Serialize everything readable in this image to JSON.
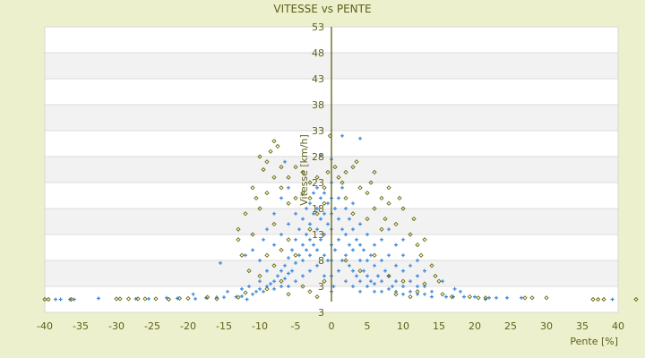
{
  "chart_data": {
    "type": "scatter",
    "title": "VITESSE vs PENTE",
    "xlabel": "Pente [%]",
    "ylabel": "Vitesse [km/h]",
    "xlim": [
      -40,
      40
    ],
    "ylim": [
      -2,
      53
    ],
    "x_ticks": [
      "-40",
      "-35",
      "-30",
      "-25",
      "-20",
      "-15",
      "-10",
      "-5",
      "0",
      "5",
      "10",
      "15",
      "20",
      "25",
      "30",
      "35",
      "40"
    ],
    "y_ticks": [
      "53",
      "48",
      "43",
      "38",
      "33",
      "28",
      "23",
      "18",
      "13",
      "8",
      "3",
      "3"
    ],
    "grid": true,
    "legend": "none",
    "colors": {
      "background": "#ecf0cc",
      "text": "#5f5f1a",
      "band": "#f2f2f2",
      "axis": "#5f5f10"
    },
    "series": [
      {
        "color": "#3a87d8",
        "marker": "plus",
        "points": [
          [
            -38.5,
            0.5
          ],
          [
            -37.8,
            0.5
          ],
          [
            -36.5,
            0.5
          ],
          [
            -35.9,
            0.5
          ],
          [
            -32.5,
            0.7
          ],
          [
            -27.3,
            0.6
          ],
          [
            -25.5,
            0.6
          ],
          [
            -23,
            0.8
          ],
          [
            -21.5,
            0.7
          ],
          [
            -19.3,
            1.5
          ],
          [
            -19,
            0.6
          ],
          [
            -17.5,
            0.8
          ],
          [
            -16,
            0.9
          ],
          [
            -15,
            0.9
          ],
          [
            -14.5,
            2
          ],
          [
            -13.3,
            1
          ],
          [
            -12.5,
            1.1
          ],
          [
            -11.8,
            0.5
          ],
          [
            -15.5,
            7.5
          ],
          [
            16,
            1
          ],
          [
            17,
            1
          ],
          [
            18,
            2
          ],
          [
            18.5,
            1
          ],
          [
            20,
            1
          ],
          [
            21.5,
            0.5
          ],
          [
            22,
            0.8
          ],
          [
            23,
            0.8
          ],
          [
            24.5,
            0.8
          ],
          [
            26.5,
            0.8
          ],
          [
            39.2,
            0.5
          ],
          [
            15.5,
            4
          ],
          [
            17.2,
            2.5
          ],
          [
            -11,
            1.5
          ],
          [
            -10.5,
            2
          ],
          [
            -10,
            2.5
          ],
          [
            -9.5,
            2
          ],
          [
            -9,
            3
          ],
          [
            -8.5,
            3.5
          ],
          [
            -8,
            2.5
          ],
          [
            -8,
            4
          ],
          [
            -7.5,
            5
          ],
          [
            -7,
            3
          ],
          [
            -7,
            6
          ],
          [
            -6.5,
            4.5
          ],
          [
            -6.5,
            7
          ],
          [
            -6,
            3
          ],
          [
            -6,
            5.5
          ],
          [
            -6,
            8.5
          ],
          [
            -5.5,
            6
          ],
          [
            -5.5,
            10
          ],
          [
            -5,
            4
          ],
          [
            -5,
            7.5
          ],
          [
            -5,
            12
          ],
          [
            -4.5,
            9
          ],
          [
            -4.5,
            14
          ],
          [
            -4,
            5
          ],
          [
            -4,
            8
          ],
          [
            -4,
            11
          ],
          [
            -4,
            16
          ],
          [
            -3.5,
            10
          ],
          [
            -3.5,
            13
          ],
          [
            -3.5,
            18
          ],
          [
            -3,
            6
          ],
          [
            -3,
            9
          ],
          [
            -3,
            12
          ],
          [
            -3,
            15
          ],
          [
            -3,
            19
          ],
          [
            -2.5,
            11
          ],
          [
            -2.5,
            17
          ],
          [
            -2.5,
            21
          ],
          [
            -2,
            7
          ],
          [
            -2,
            10
          ],
          [
            -2,
            14
          ],
          [
            -2,
            18
          ],
          [
            -2,
            22
          ],
          [
            -1.5,
            12
          ],
          [
            -1.5,
            16
          ],
          [
            -1.5,
            20
          ],
          [
            -1,
            5
          ],
          [
            -1,
            9
          ],
          [
            -1,
            13
          ],
          [
            -1,
            17
          ],
          [
            -1,
            21
          ],
          [
            -0.5,
            8
          ],
          [
            -0.5,
            15
          ],
          [
            -0.5,
            19
          ],
          [
            -9,
            6
          ],
          [
            -10,
            8
          ],
          [
            -11,
            10
          ],
          [
            -12,
            9
          ],
          [
            -8,
            11
          ],
          [
            -7,
            13
          ],
          [
            -6,
            15
          ],
          [
            -5,
            17
          ],
          [
            -9,
            14
          ],
          [
            -8,
            17
          ],
          [
            -7,
            20
          ],
          [
            -6,
            22
          ],
          [
            -10,
            4
          ],
          [
            -11.5,
            3
          ],
          [
            -12.5,
            2.5
          ],
          [
            -9.5,
            12
          ],
          [
            -6.5,
            27
          ],
          [
            0.3,
            3
          ],
          [
            0.5,
            10
          ],
          [
            0.5,
            18
          ],
          [
            1,
            6
          ],
          [
            1,
            12
          ],
          [
            1,
            16
          ],
          [
            1,
            20
          ],
          [
            1.5,
            8
          ],
          [
            1.5,
            14
          ],
          [
            1.5,
            22
          ],
          [
            2,
            4
          ],
          [
            2,
            9
          ],
          [
            2,
            13
          ],
          [
            2,
            18
          ],
          [
            2.5,
            7
          ],
          [
            2.5,
            11
          ],
          [
            2.5,
            16
          ],
          [
            3,
            3
          ],
          [
            3,
            6
          ],
          [
            3,
            10
          ],
          [
            3,
            14
          ],
          [
            3,
            19
          ],
          [
            3.5,
            5
          ],
          [
            3.5,
            12
          ],
          [
            4,
            2
          ],
          [
            4,
            4
          ],
          [
            4,
            8
          ],
          [
            4,
            11
          ],
          [
            4,
            15
          ],
          [
            4.5,
            6
          ],
          [
            4.5,
            10
          ],
          [
            5,
            3
          ],
          [
            5,
            5
          ],
          [
            5,
            8
          ],
          [
            5,
            13
          ],
          [
            5.5,
            4
          ],
          [
            5.5,
            9
          ],
          [
            6,
            2
          ],
          [
            6,
            3.5
          ],
          [
            6,
            7
          ],
          [
            6,
            11
          ],
          [
            6.5,
            5
          ],
          [
            7,
            2
          ],
          [
            7,
            4
          ],
          [
            7,
            8
          ],
          [
            7,
            12
          ],
          [
            7.5,
            6
          ],
          [
            8,
            2.5
          ],
          [
            8,
            5
          ],
          [
            8,
            9
          ],
          [
            8.5,
            3
          ],
          [
            9,
            2
          ],
          [
            9,
            4
          ],
          [
            9,
            7
          ],
          [
            9,
            11
          ],
          [
            10,
            1.5
          ],
          [
            10,
            3
          ],
          [
            10,
            6
          ],
          [
            10,
            9
          ],
          [
            11,
            2
          ],
          [
            11,
            4
          ],
          [
            11,
            7
          ],
          [
            12,
            1.5
          ],
          [
            12,
            3
          ],
          [
            12,
            5
          ],
          [
            13,
            1.5
          ],
          [
            13,
            3
          ],
          [
            14,
            1
          ],
          [
            14,
            2
          ],
          [
            1.5,
            32
          ],
          [
            4,
            31.5
          ],
          [
            0,
            27.5
          ],
          [
            -1.5,
            28.2
          ],
          [
            12,
            8
          ],
          [
            13,
            6
          ],
          [
            10,
            12
          ],
          [
            8,
            14
          ],
          [
            0,
            2
          ],
          [
            0,
            5
          ],
          [
            0,
            8
          ],
          [
            0,
            11
          ],
          [
            0,
            14
          ],
          [
            0,
            17
          ],
          [
            0,
            20
          ],
          [
            0,
            23
          ]
        ]
      },
      {
        "color": "#6b6b10",
        "marker": "diamond",
        "points": [
          [
            -40,
            0.5
          ],
          [
            -39.5,
            0.5
          ],
          [
            -36.3,
            0.5
          ],
          [
            -30,
            0.6
          ],
          [
            -29.5,
            0.6
          ],
          [
            -28.3,
            0.6
          ],
          [
            -27,
            0.6
          ],
          [
            -26,
            0.6
          ],
          [
            -24.5,
            0.6
          ],
          [
            -22.7,
            0.5
          ],
          [
            -21.2,
            0.7
          ],
          [
            -20,
            0.7
          ],
          [
            -17.3,
            0.9
          ],
          [
            -16,
            0.6
          ],
          [
            -13,
            0.9
          ],
          [
            -12,
            1.8
          ],
          [
            15.5,
            1.5
          ],
          [
            16.8,
            1
          ],
          [
            19.3,
            1
          ],
          [
            20.5,
            0.8
          ],
          [
            21.5,
            0.8
          ],
          [
            27,
            0.8
          ],
          [
            28,
            0.8
          ],
          [
            30,
            0.8
          ],
          [
            36.5,
            0.5
          ],
          [
            37.2,
            0.5
          ],
          [
            38,
            0.5
          ],
          [
            42.5,
            0.5
          ],
          [
            -10,
            28
          ],
          [
            -9,
            27
          ],
          [
            -8.5,
            29
          ],
          [
            -8,
            31
          ],
          [
            -7.5,
            30
          ],
          [
            -7,
            26
          ],
          [
            -9.5,
            25.5
          ],
          [
            -10.5,
            20
          ],
          [
            -11,
            22
          ],
          [
            -12,
            17
          ],
          [
            -13,
            14
          ],
          [
            -13,
            12
          ],
          [
            -12.5,
            9
          ],
          [
            -11.5,
            6
          ],
          [
            -11,
            13
          ],
          [
            -10,
            18
          ],
          [
            -9,
            21
          ],
          [
            -8,
            24
          ],
          [
            -7,
            22
          ],
          [
            -6,
            24
          ],
          [
            -5,
            26
          ],
          [
            -4,
            25
          ],
          [
            -3,
            23
          ],
          [
            -2,
            24
          ],
          [
            -1,
            22
          ],
          [
            -6,
            19
          ],
          [
            -5,
            20
          ],
          [
            -4,
            21
          ],
          [
            -3,
            20
          ],
          [
            -8,
            15
          ],
          [
            -7,
            10
          ],
          [
            -9,
            9
          ],
          [
            -10,
            5
          ],
          [
            -8,
            7
          ],
          [
            -6,
            12
          ],
          [
            -5,
            9
          ],
          [
            -4,
            3
          ],
          [
            -3,
            2
          ],
          [
            -2,
            1
          ],
          [
            -1,
            4
          ],
          [
            -0.5,
            25
          ],
          [
            -0.2,
            32
          ],
          [
            0.5,
            26
          ],
          [
            1,
            24
          ],
          [
            1.5,
            23
          ],
          [
            2,
            25
          ],
          [
            3,
            26
          ],
          [
            3.5,
            27
          ],
          [
            4,
            22
          ],
          [
            5,
            21
          ],
          [
            5.5,
            23
          ],
          [
            6,
            25
          ],
          [
            6,
            18
          ],
          [
            7,
            20
          ],
          [
            7.5,
            16
          ],
          [
            8,
            19
          ],
          [
            8,
            22
          ],
          [
            9,
            15
          ],
          [
            9.5,
            20
          ],
          [
            10,
            18
          ],
          [
            11,
            13
          ],
          [
            11.5,
            16
          ],
          [
            12,
            11
          ],
          [
            12.5,
            9
          ],
          [
            13,
            12
          ],
          [
            14,
            7
          ],
          [
            14.5,
            5
          ],
          [
            15,
            4
          ],
          [
            4,
            6
          ],
          [
            6,
            9
          ],
          [
            8,
            5
          ],
          [
            10,
            4
          ],
          [
            12,
            2
          ],
          [
            13,
            3.5
          ],
          [
            5,
            16
          ],
          [
            7,
            14
          ],
          [
            3,
            17
          ],
          [
            2,
            20
          ],
          [
            -2,
            17
          ],
          [
            -3,
            14
          ],
          [
            -1,
            19
          ],
          [
            2,
            8
          ],
          [
            9,
            1.5
          ],
          [
            11,
            1
          ],
          [
            -7,
            4
          ],
          [
            -9,
            2.5
          ],
          [
            -6,
            1.5
          ]
        ]
      }
    ]
  }
}
